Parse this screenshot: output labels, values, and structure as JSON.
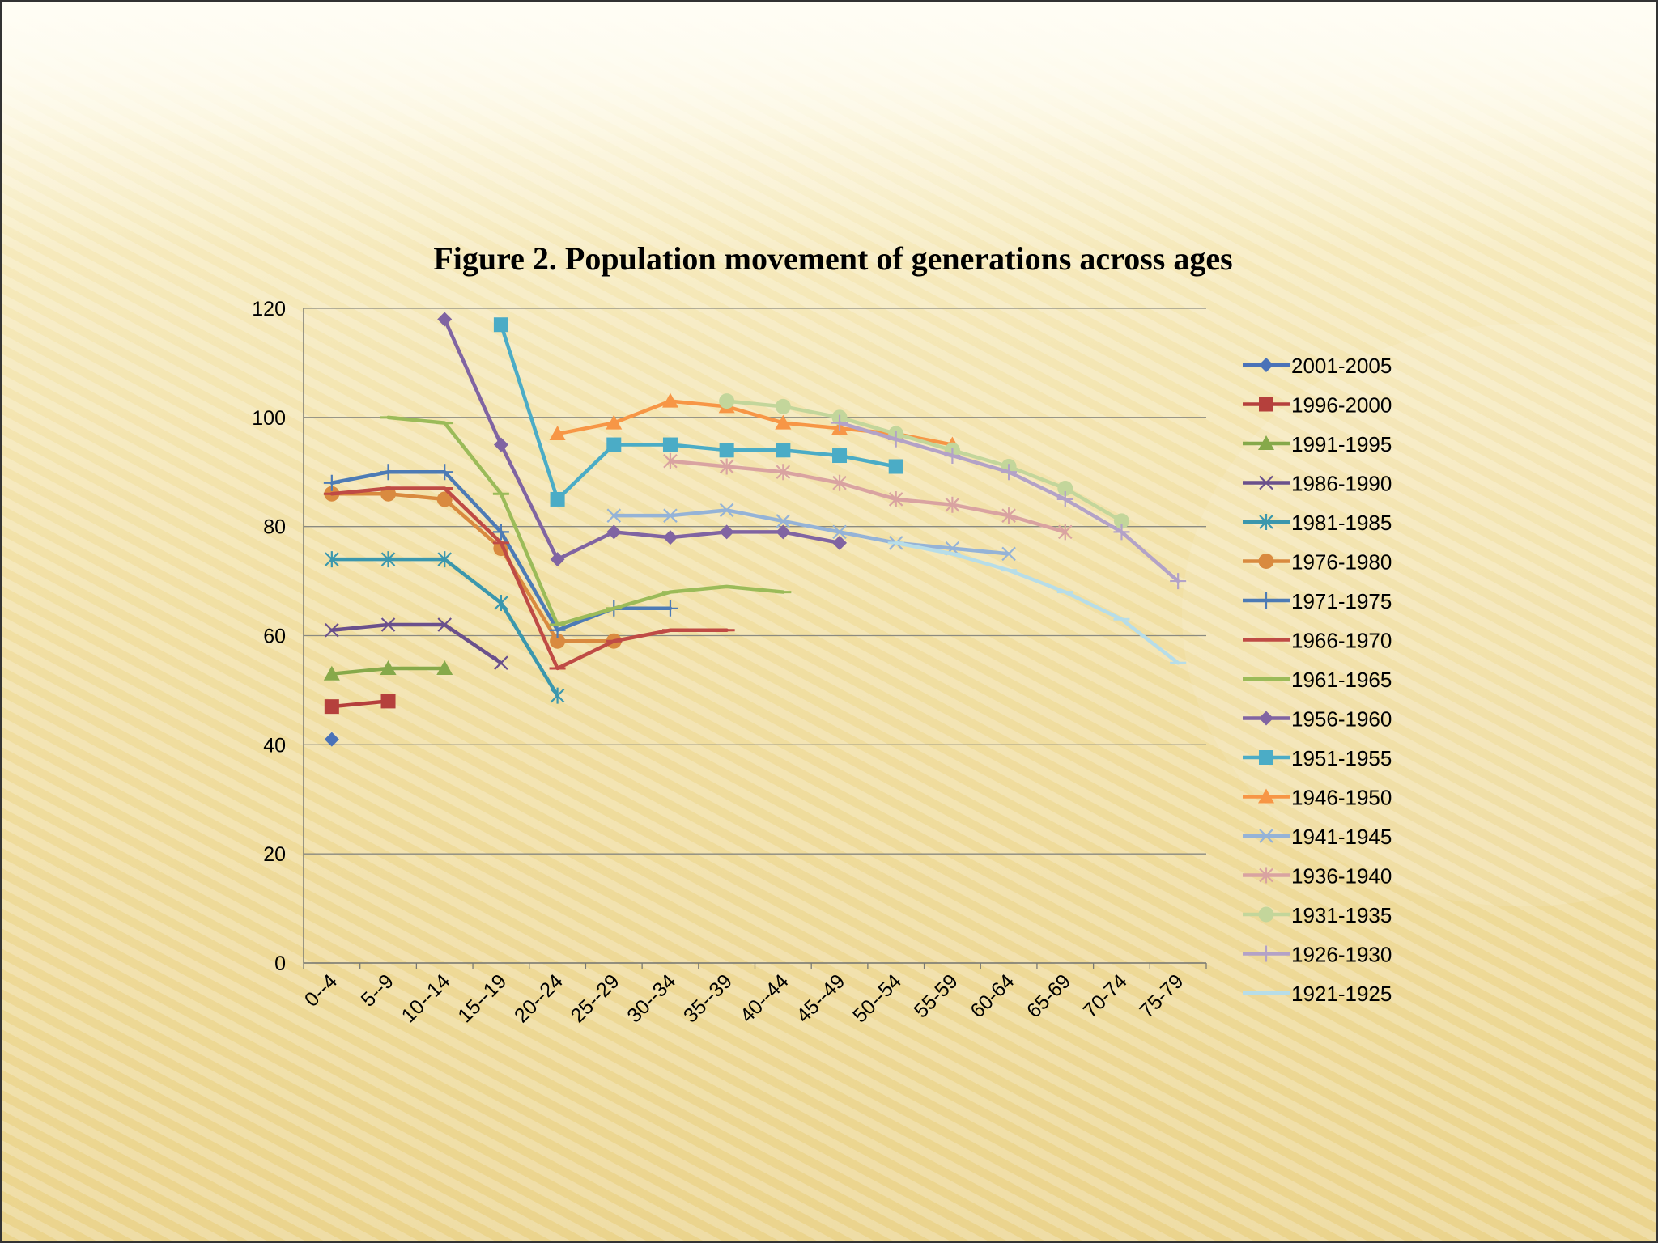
{
  "chart_data": {
    "type": "line",
    "title": "Figure 2. Population movement of generations across ages",
    "xlabel": "",
    "ylabel": "",
    "categories": [
      "0--4",
      "5--9",
      "10--14",
      "15--19",
      "20--24",
      "25--29",
      "30--34",
      "35--39",
      "40--44",
      "45--49",
      "50--54",
      "55-59",
      "60-64",
      "65-69",
      "70-74",
      "75-79"
    ],
    "ylim": [
      0,
      120
    ],
    "yticks": [
      0,
      20,
      40,
      60,
      80,
      100,
      120
    ],
    "grid": true,
    "legend_position": "right",
    "series": [
      {
        "name": "2001-2005",
        "color": "#4a72b8",
        "marker": "diamond",
        "values": [
          41,
          null,
          null,
          null,
          null,
          null,
          null,
          null,
          null,
          null,
          null,
          null,
          null,
          null,
          null,
          null
        ]
      },
      {
        "name": "1996-2000",
        "color": "#b5403c",
        "marker": "square",
        "values": [
          47,
          48,
          null,
          null,
          null,
          null,
          null,
          null,
          null,
          null,
          null,
          null,
          null,
          null,
          null,
          null
        ]
      },
      {
        "name": "1991-1995",
        "color": "#86a94a",
        "marker": "triangle",
        "values": [
          53,
          54,
          54,
          null,
          null,
          null,
          null,
          null,
          null,
          null,
          null,
          null,
          null,
          null,
          null,
          null
        ]
      },
      {
        "name": "1986-1990",
        "color": "#6a508c",
        "marker": "x",
        "values": [
          61,
          62,
          62,
          55,
          null,
          null,
          null,
          null,
          null,
          null,
          null,
          null,
          null,
          null,
          null,
          null
        ]
      },
      {
        "name": "1981-1985",
        "color": "#3b97ad",
        "marker": "star",
        "values": [
          74,
          74,
          74,
          66,
          49,
          null,
          null,
          null,
          null,
          null,
          null,
          null,
          null,
          null,
          null,
          null
        ]
      },
      {
        "name": "1976-1980",
        "color": "#d98a3f",
        "marker": "circle",
        "values": [
          86,
          86,
          85,
          76,
          59,
          59,
          null,
          null,
          null,
          null,
          null,
          null,
          null,
          null,
          null,
          null
        ]
      },
      {
        "name": "1971-1975",
        "color": "#4d7bb5",
        "marker": "plus",
        "values": [
          88,
          90,
          90,
          79,
          61,
          65,
          65,
          null,
          null,
          null,
          null,
          null,
          null,
          null,
          null,
          null
        ]
      },
      {
        "name": "1966-1970",
        "color": "#bf4b45",
        "marker": "dash",
        "values": [
          86,
          87,
          87,
          77,
          54,
          59,
          61,
          61,
          null,
          null,
          null,
          null,
          null,
          null,
          null,
          null
        ]
      },
      {
        "name": "1961-1965",
        "color": "#9bbb59",
        "marker": "dash",
        "values": [
          null,
          100,
          99,
          86,
          62,
          65,
          68,
          69,
          68,
          null,
          null,
          null,
          null,
          null,
          null,
          null
        ]
      },
      {
        "name": "1956-1960",
        "color": "#8064a2",
        "marker": "diamond",
        "values": [
          null,
          null,
          118,
          95,
          74,
          79,
          78,
          79,
          79,
          77,
          null,
          null,
          null,
          null,
          null,
          null
        ]
      },
      {
        "name": "1951-1955",
        "color": "#4bacc6",
        "marker": "square",
        "values": [
          null,
          null,
          null,
          117,
          85,
          95,
          95,
          94,
          94,
          93,
          91,
          null,
          null,
          null,
          null,
          null
        ]
      },
      {
        "name": "1946-1950",
        "color": "#f79646",
        "marker": "triangle",
        "values": [
          null,
          null,
          null,
          null,
          97,
          99,
          103,
          102,
          99,
          98,
          97,
          95,
          null,
          null,
          null,
          null
        ]
      },
      {
        "name": "1941-1945",
        "color": "#95b3d7",
        "marker": "x",
        "values": [
          null,
          null,
          null,
          null,
          null,
          82,
          82,
          83,
          81,
          79,
          77,
          76,
          75,
          null,
          null,
          null
        ]
      },
      {
        "name": "1936-1940",
        "color": "#d9a3a1",
        "marker": "star",
        "values": [
          null,
          null,
          null,
          null,
          null,
          null,
          92,
          91,
          90,
          88,
          85,
          84,
          82,
          79,
          null,
          null
        ]
      },
      {
        "name": "1931-1935",
        "color": "#c3d69b",
        "marker": "circle",
        "values": [
          null,
          null,
          null,
          null,
          null,
          null,
          null,
          103,
          102,
          100,
          97,
          94,
          91,
          87,
          81,
          null
        ]
      },
      {
        "name": "1926-1930",
        "color": "#b3a2c7",
        "marker": "plus",
        "values": [
          null,
          null,
          null,
          null,
          null,
          null,
          null,
          null,
          null,
          99,
          96,
          93,
          90,
          85,
          79,
          70
        ]
      },
      {
        "name": "1921-1925",
        "color": "#b7dde8",
        "marker": "dash",
        "values": [
          null,
          null,
          null,
          null,
          null,
          null,
          null,
          null,
          null,
          null,
          77,
          75,
          72,
          68,
          63,
          55
        ]
      }
    ]
  }
}
